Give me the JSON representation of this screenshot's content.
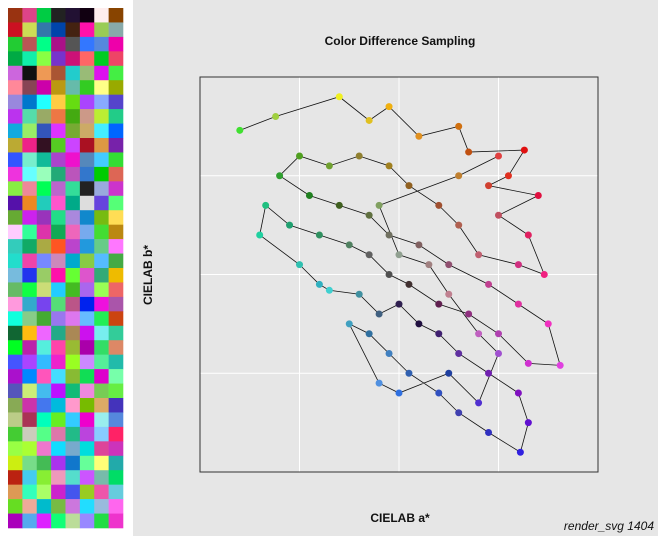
{
  "caption": "render_svg 1404",
  "swatches": [
    [
      "#931",
      "#d48",
      "#0c4",
      "#222",
      "#213",
      "#101",
      "#fee",
      "#840"
    ],
    [
      "#c12",
      "#cd5",
      "#37a",
      "#04a",
      "#421",
      "#f1a",
      "#9c5",
      "#8aa"
    ],
    [
      "#2c3",
      "#b55",
      "#0f8",
      "#a18",
      "#555",
      "#37f",
      "#58d",
      "#e0a"
    ],
    [
      "#0a4",
      "#1ea",
      "#8f4",
      "#73c",
      "#c17",
      "#f66",
      "#0c2",
      "#e46"
    ],
    [
      "#c6d",
      "#111",
      "#e95",
      "#a53",
      "#2cc",
      "#9b7",
      "#d1e",
      "#4e4"
    ],
    [
      "#f89",
      "#845",
      "#c0a",
      "#b91",
      "#6ba",
      "#3c2",
      "#ff8",
      "#9a0"
    ],
    [
      "#98d",
      "#07c",
      "#2ff",
      "#fc4",
      "#6d1",
      "#a4f",
      "#8af",
      "#54c"
    ],
    [
      "#b3e",
      "#5da",
      "#9a6",
      "#e74",
      "#4a1",
      "#c98",
      "#be3",
      "#2c8"
    ],
    [
      "#1ad",
      "#9e6",
      "#35b",
      "#d3f",
      "#7a3",
      "#ca6",
      "#4ef",
      "#06f"
    ],
    [
      "#ba3",
      "#e28",
      "#312",
      "#5c2",
      "#c4f",
      "#a12",
      "#d94",
      "#72a"
    ],
    [
      "#35f",
      "#7ec",
      "#1b9",
      "#a4c",
      "#e1c",
      "#58b",
      "#4cf",
      "#3d3"
    ],
    [
      "#e3d",
      "#6ff",
      "#9fb",
      "#2a7",
      "#b5b",
      "#37c",
      "#0c0",
      "#d65"
    ],
    [
      "#8e4",
      "#e89",
      "#0f5",
      "#b6c",
      "#3d9",
      "#222",
      "#9ad",
      "#c3c"
    ],
    [
      "#51a",
      "#e82",
      "#2cb",
      "#f5c",
      "#0a8",
      "#ddd",
      "#64d",
      "#5f7"
    ],
    [
      "#6a3",
      "#c2e",
      "#93b",
      "#2d8",
      "#a8d",
      "#18c",
      "#7b1",
      "#fd5"
    ],
    [
      "#fcf",
      "#3f9",
      "#d3a",
      "#1a5",
      "#e6b",
      "#7ae",
      "#4d3",
      "#b81"
    ],
    [
      "#3cb",
      "#1a6",
      "#aa4",
      "#f52",
      "#b4c",
      "#29d",
      "#6c8",
      "#f7f"
    ],
    [
      "#2dc",
      "#e4a",
      "#78f",
      "#c8b",
      "#0ac",
      "#8c4",
      "#5bf",
      "#4a4"
    ],
    [
      "#7bd",
      "#23e",
      "#9c6",
      "#f1a",
      "#6f3",
      "#d5c",
      "#3a7",
      "#eb0"
    ],
    [
      "#6b6",
      "#1f4",
      "#cd7",
      "#2cf",
      "#4b2",
      "#a6e",
      "#9f5",
      "#e66"
    ],
    [
      "#f9d",
      "#3ac",
      "#74e",
      "#5d7",
      "#b58",
      "#02e",
      "#e1d",
      "#a5a"
    ],
    [
      "#1fd",
      "#8c8",
      "#4a3",
      "#97e",
      "#d7e",
      "#6bf",
      "#2e5",
      "#c41"
    ],
    [
      "#163",
      "#fb1",
      "#e6f",
      "#2a8",
      "#a85",
      "#c1e",
      "#7ee",
      "#3c9"
    ],
    [
      "#0f2",
      "#b2a",
      "#5ed",
      "#f4a",
      "#9b3",
      "#a0a",
      "#3d6",
      "#d86"
    ],
    [
      "#45f",
      "#a4f",
      "#3bf",
      "#e2c",
      "#9f2",
      "#c8f",
      "#5e9",
      "#2ba"
    ],
    [
      "#a1c",
      "#08f",
      "#f5b",
      "#4df",
      "#8b3",
      "#1d5",
      "#d0c",
      "#7fa"
    ],
    [
      "#55b",
      "#ce7",
      "#4be",
      "#b1f",
      "#1b7",
      "#e8d",
      "#7c5",
      "#6e4"
    ],
    [
      "#8a5",
      "#c3a",
      "#47e",
      "#0bd",
      "#f9c",
      "#7b0",
      "#da6",
      "#43b"
    ],
    [
      "#bc8",
      "#a35",
      "#0fb",
      "#6e2",
      "#3cf",
      "#e0c",
      "#9ee",
      "#58d"
    ],
    [
      "#4c3",
      "#ccb",
      "#5f8",
      "#d7a",
      "#2b8",
      "#b4d",
      "#8cf",
      "#f26"
    ],
    [
      "#9f4",
      "#af3",
      "#e7c",
      "#1df",
      "#7ac",
      "#0dd",
      "#d49",
      "#c3b"
    ],
    [
      "#ce1",
      "#7d8",
      "#4b5",
      "#a3e",
      "#17c",
      "#6f9",
      "#ff7",
      "#2aa"
    ],
    [
      "#b21",
      "#4ce",
      "#8e3",
      "#e9b",
      "#5dc",
      "#c5f",
      "#7ba",
      "#0d6"
    ],
    [
      "#d95",
      "#3fb",
      "#af6",
      "#c2c",
      "#45e",
      "#9c2",
      "#e5a",
      "#6cd"
    ],
    [
      "#6d2",
      "#ea9",
      "#0bc",
      "#7b4",
      "#c7d",
      "#2df",
      "#9bd",
      "#f6e"
    ],
    [
      "#a0b",
      "#5ae",
      "#d2f",
      "#1f7",
      "#bd9",
      "#98f",
      "#2d4",
      "#e3c"
    ]
  ],
  "chart_data": {
    "type": "scatter",
    "title": "Color Difference Sampling",
    "xlabel": "CIELAB a*",
    "ylabel": "CIELAB b*",
    "xlim": [
      -100,
      100
    ],
    "ylim": [
      -100,
      100
    ],
    "xticks": [
      -50,
      0,
      50
    ],
    "yticks": [
      -50,
      0,
      50
    ],
    "grid": true,
    "connect": true,
    "x": [
      -80,
      -62,
      -30,
      -15,
      -5,
      10,
      30,
      35,
      63,
      55,
      45,
      70,
      50,
      65,
      73,
      60,
      40,
      30,
      20,
      5,
      -5,
      -20,
      -35,
      -50,
      -60,
      -45,
      -30,
      -15,
      -5,
      10,
      25,
      45,
      60,
      75,
      81,
      65,
      50,
      35,
      20,
      5,
      -5,
      -15,
      -25,
      -40,
      -55,
      -67,
      -70,
      -50,
      -40,
      -35,
      -20,
      -10,
      0,
      10,
      20,
      30,
      45,
      60,
      65,
      61,
      45,
      30,
      20,
      5,
      -5,
      -15,
      -25,
      -10,
      0,
      25,
      40,
      50,
      40,
      25,
      15,
      0,
      -10,
      30,
      50
    ],
    "y": [
      73,
      80,
      90,
      78,
      85,
      70,
      75,
      62,
      63,
      50,
      45,
      40,
      30,
      20,
      0,
      5,
      10,
      25,
      35,
      45,
      55,
      60,
      55,
      60,
      50,
      40,
      35,
      30,
      20,
      15,
      5,
      -5,
      -15,
      -25,
      -46,
      -45,
      -30,
      -20,
      -15,
      -5,
      0,
      10,
      15,
      20,
      25,
      35,
      20,
      5,
      -5,
      -8,
      -10,
      -20,
      -15,
      -25,
      -30,
      -40,
      -50,
      -60,
      -75,
      -90,
      -80,
      -70,
      -60,
      -50,
      -40,
      -30,
      -25,
      -55,
      -60,
      -50,
      -65,
      -40,
      -30,
      -10,
      5,
      10,
      35,
      50,
      60
    ],
    "colors": [
      "#40e030",
      "#a0d040",
      "#f0f020",
      "#e0c020",
      "#f0b010",
      "#e09020",
      "#d07010",
      "#c05010",
      "#e01010",
      "#e03020",
      "#d04030",
      "#e01040",
      "#c05060",
      "#e02060",
      "#f02080",
      "#d03080",
      "#c06070",
      "#b06050",
      "#a05030",
      "#906020",
      "#a08020",
      "#908030",
      "#70a030",
      "#50a020",
      "#30a030",
      "#208020",
      "#406020",
      "#607040",
      "#707060",
      "#806060",
      "#905070",
      "#c04090",
      "#e030a0",
      "#f030c0",
      "#e040e0",
      "#d030d0",
      "#b040b0",
      "#903080",
      "#602050",
      "#403030",
      "#505050",
      "#606060",
      "#508060",
      "#309060",
      "#20a070",
      "#20c080",
      "#20d0a0",
      "#30c0b0",
      "#30b0c0",
      "#40d0d0",
      "#4090a0",
      "#406080",
      "#302050",
      "#201040",
      "#402070",
      "#6030a0",
      "#7020b0",
      "#8010c0",
      "#6010d0",
      "#3020e0",
      "#3030c0",
      "#4040b0",
      "#3050c0",
      "#3060b0",
      "#4080c0",
      "#3070a0",
      "#40a0c0",
      "#5090e0",
      "#3070e0",
      "#2040a0",
      "#5030d0",
      "#a050d0",
      "#c060c0",
      "#c08090",
      "#a08080",
      "#90a090",
      "#80a060",
      "#c08030",
      "#e04040"
    ]
  }
}
